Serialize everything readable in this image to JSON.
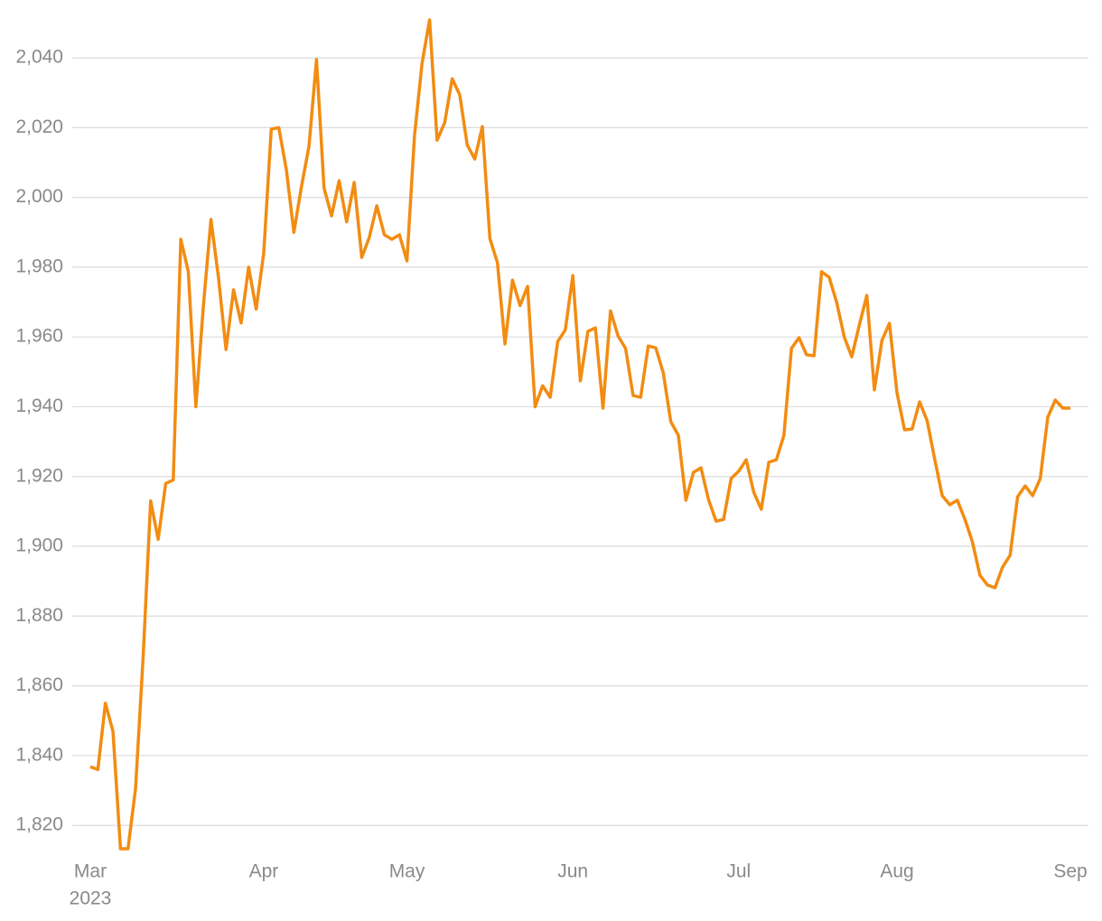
{
  "chart_data": {
    "type": "line",
    "categories": [
      "Mar",
      null,
      null,
      null,
      null,
      null,
      null,
      null,
      null,
      null,
      null,
      null,
      null,
      null,
      null,
      null,
      null,
      null,
      null,
      null,
      null,
      null,
      null,
      "Apr",
      null,
      null,
      null,
      null,
      null,
      null,
      null,
      null,
      null,
      null,
      null,
      null,
      null,
      null,
      null,
      null,
      null,
      null,
      "May",
      null,
      null,
      null,
      null,
      null,
      null,
      null,
      null,
      null,
      null,
      null,
      null,
      null,
      null,
      null,
      null,
      null,
      null,
      null,
      null,
      null,
      "Jun",
      null,
      null,
      null,
      null,
      null,
      null,
      null,
      null,
      null,
      null,
      null,
      null,
      null,
      null,
      null,
      null,
      null,
      null,
      null,
      null,
      null,
      "Jul",
      null,
      null,
      null,
      null,
      null,
      null,
      null,
      null,
      null,
      null,
      null,
      null,
      null,
      null,
      null,
      null,
      null,
      null,
      null,
      null,
      "Aug",
      null,
      null,
      null,
      null,
      null,
      null,
      null,
      null,
      null,
      null,
      null,
      null,
      null,
      null,
      null,
      null,
      null,
      null,
      null,
      null,
      null,
      null,
      "Sep"
    ],
    "year_label": "2023",
    "values": [
      1836.8,
      1836,
      1855,
      1847,
      1813.3,
      1813.3,
      1830.6,
      1868,
      1913,
      1902,
      1918,
      1919,
      1988,
      1978.7,
      1940,
      1969,
      1993.7,
      1977,
      1956.4,
      1973.5,
      1964,
      1980,
      1968,
      1984,
      2019.6,
      2020,
      2008,
      1990,
      2003,
      2014.6,
      2039.5,
      2002.7,
      1994.7,
      2004.8,
      1993,
      2004.3,
      1982.8,
      1988.5,
      1997.6,
      1989.3,
      1988,
      1989.3,
      1981.8,
      2017.7,
      2038.4,
      2050.9,
      2016.4,
      2021.4,
      2034,
      2029.4,
      2015,
      2011,
      2020.3,
      1988.2,
      1981.3,
      1958,
      1976.3,
      1969,
      1974.5,
      1940,
      1946,
      1942.7,
      1958.7,
      1962,
      1977.6,
      1947.4,
      1961.6,
      1962.6,
      1939.6,
      1967.5,
      1960.3,
      1956.7,
      1943.2,
      1942.7,
      1957.4,
      1956.9,
      1949.7,
      1935.7,
      1931.8,
      1913.2,
      1921.2,
      1922.5,
      1913.4,
      1907.2,
      1907.7,
      1919.4,
      1921.5,
      1924.8,
      1915.5,
      1910.6,
      1924.1,
      1924.8,
      1931.8,
      1956.7,
      1959.8,
      1954.9,
      1954.6,
      1978.7,
      1977.1,
      1969.9,
      1960,
      1954.3,
      1963.4,
      1971.9,
      1944.8,
      1959,
      1963.9,
      1944,
      1933.4,
      1933.6,
      1941.4,
      1936,
      1925,
      1914.5,
      1911.9,
      1913.2,
      1907.8,
      1901.3,
      1891.7,
      1888.9,
      1888.1,
      1894,
      1897.4,
      1914.2,
      1917.3,
      1914.5,
      1919.4,
      1937,
      1941.9,
      1939.6,
      1939.6
    ],
    "color": "#f28c12",
    "ylim": [
      1812,
      2054
    ],
    "yticks": [
      {
        "value": 1820,
        "label": "1,820"
      },
      {
        "value": 1840,
        "label": "1,840"
      },
      {
        "value": 1860,
        "label": "1,860"
      },
      {
        "value": 1880,
        "label": "1,880"
      },
      {
        "value": 1900,
        "label": "1,900"
      },
      {
        "value": 1920,
        "label": "1,920"
      },
      {
        "value": 1940,
        "label": "1,940"
      },
      {
        "value": 1960,
        "label": "1,960"
      },
      {
        "value": 1980,
        "label": "1,980"
      },
      {
        "value": 2000,
        "label": "2,000"
      },
      {
        "value": 2020,
        "label": "2,020"
      },
      {
        "value": 2040,
        "label": "2,040"
      }
    ],
    "grid": true
  }
}
